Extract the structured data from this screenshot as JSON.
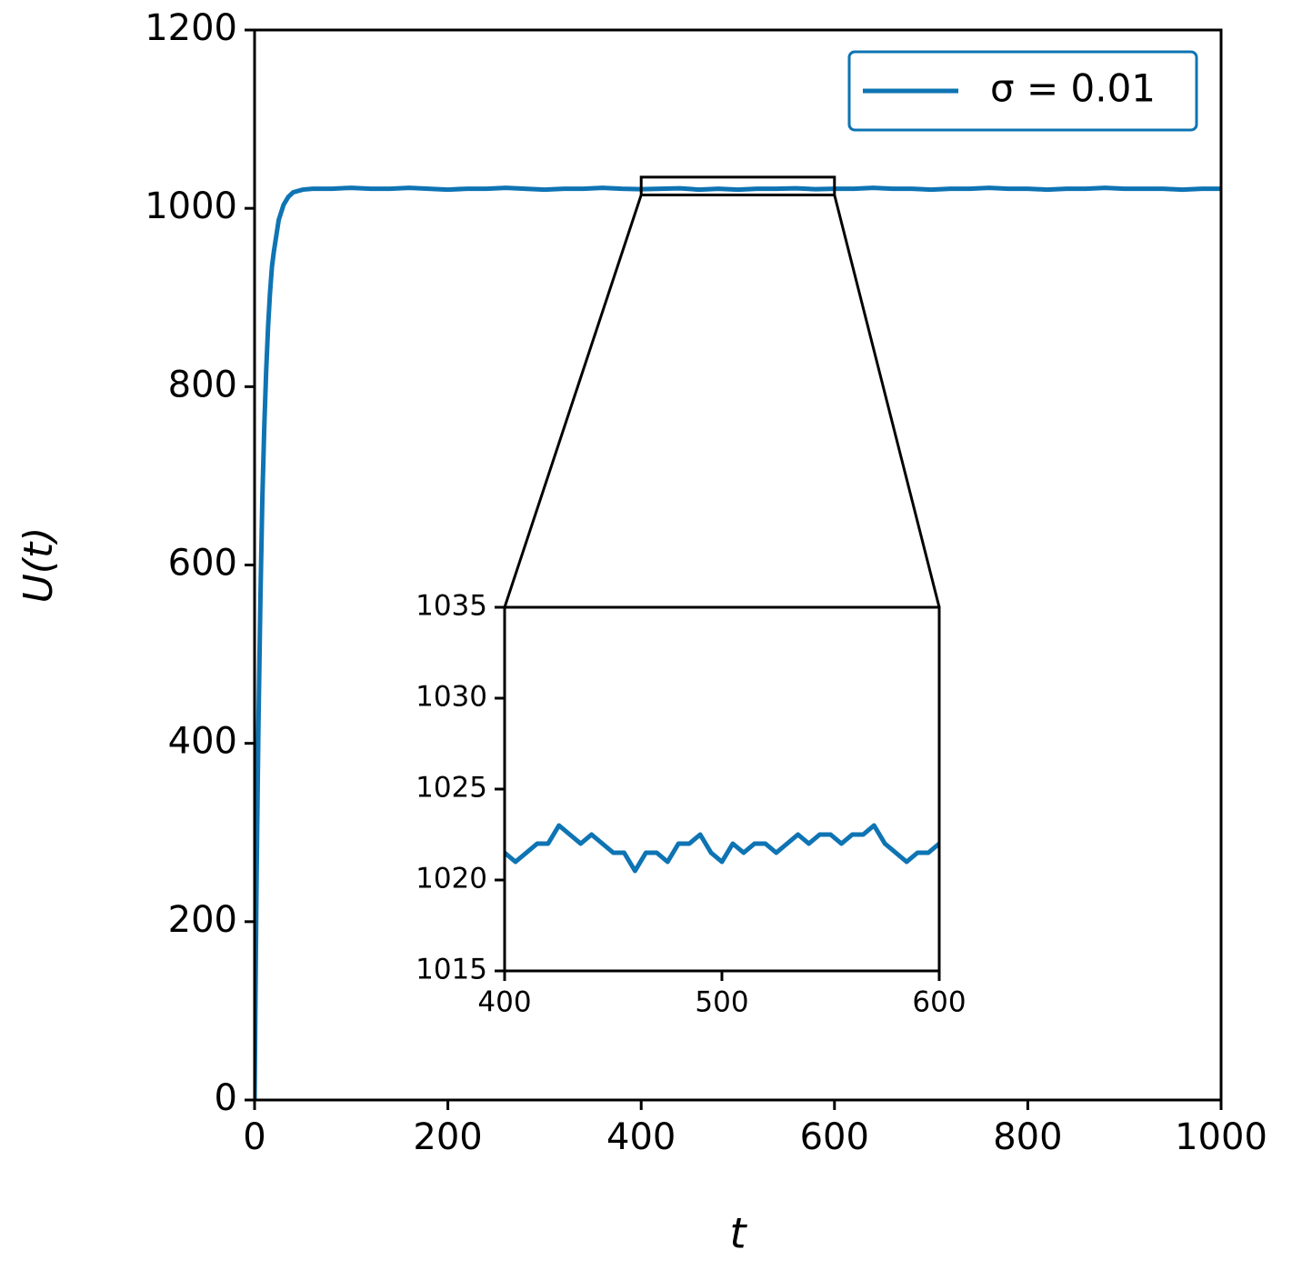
{
  "chart_data": [
    {
      "type": "line",
      "xlabel": "t",
      "ylabel": "U(t)",
      "x": [
        0,
        2,
        4,
        6,
        8,
        10,
        12,
        14,
        16,
        18,
        20,
        25,
        30,
        35,
        40,
        50,
        60,
        80,
        100,
        120,
        140,
        160,
        180,
        200,
        220,
        240,
        260,
        280,
        300,
        320,
        340,
        360,
        380,
        400,
        420,
        440,
        460,
        480,
        500,
        520,
        540,
        560,
        580,
        600,
        620,
        640,
        660,
        680,
        700,
        720,
        740,
        760,
        780,
        800,
        820,
        840,
        860,
        880,
        900,
        920,
        940,
        960,
        980,
        1000
      ],
      "series": [
        {
          "name": "σ = 0.01",
          "color": "#0e74b3",
          "values": [
            0,
            243,
            420,
            560,
            673,
            754,
            818,
            868,
            906,
            935,
            952,
            987,
            1004,
            1013,
            1018,
            1021,
            1022,
            1022,
            1023,
            1022,
            1022,
            1023,
            1022,
            1021,
            1022,
            1022,
            1023,
            1022,
            1021,
            1022,
            1022,
            1023,
            1022,
            1021.5,
            1022,
            1022.5,
            1021,
            1022,
            1021,
            1022,
            1022,
            1022.5,
            1021.5,
            1022,
            1022,
            1023,
            1022,
            1022,
            1021,
            1022,
            1022,
            1023,
            1022,
            1022,
            1021,
            1022,
            1022,
            1023,
            1022,
            1022,
            1022,
            1021,
            1022,
            1022
          ]
        }
      ],
      "xlim": [
        0,
        1000
      ],
      "ylim": [
        0,
        1200
      ],
      "xticks": [
        0,
        200,
        400,
        600,
        800,
        1000
      ],
      "yticks": [
        0,
        200,
        400,
        600,
        800,
        1000,
        1200
      ],
      "grid": false,
      "legend": "upper right"
    },
    {
      "type": "line",
      "x": [
        400,
        405,
        410,
        415,
        420,
        425,
        430,
        435,
        440,
        445,
        450,
        455,
        460,
        465,
        470,
        475,
        480,
        485,
        490,
        495,
        500,
        505,
        510,
        515,
        520,
        525,
        530,
        535,
        540,
        545,
        550,
        555,
        560,
        565,
        570,
        575,
        580,
        585,
        590,
        595,
        600
      ],
      "values": [
        1021.5,
        1021,
        1021.5,
        1022,
        1022,
        1023,
        1022.5,
        1022,
        1022.5,
        1022,
        1021.5,
        1021.5,
        1020.5,
        1021.5,
        1021.5,
        1021,
        1022,
        1022,
        1022.5,
        1021.5,
        1021,
        1022,
        1021.5,
        1022,
        1022,
        1021.5,
        1022,
        1022.5,
        1022,
        1022.5,
        1022.5,
        1022,
        1022.5,
        1022.5,
        1023,
        1022,
        1021.5,
        1021,
        1021.5,
        1021.5,
        1022
      ],
      "color": "#0e74b3",
      "xlim": [
        400,
        600
      ],
      "ylim": [
        1015,
        1035
      ],
      "xticks": [
        400,
        500,
        600
      ],
      "yticks": [
        1015,
        1020,
        1025,
        1030,
        1035
      ],
      "grid": false
    }
  ]
}
